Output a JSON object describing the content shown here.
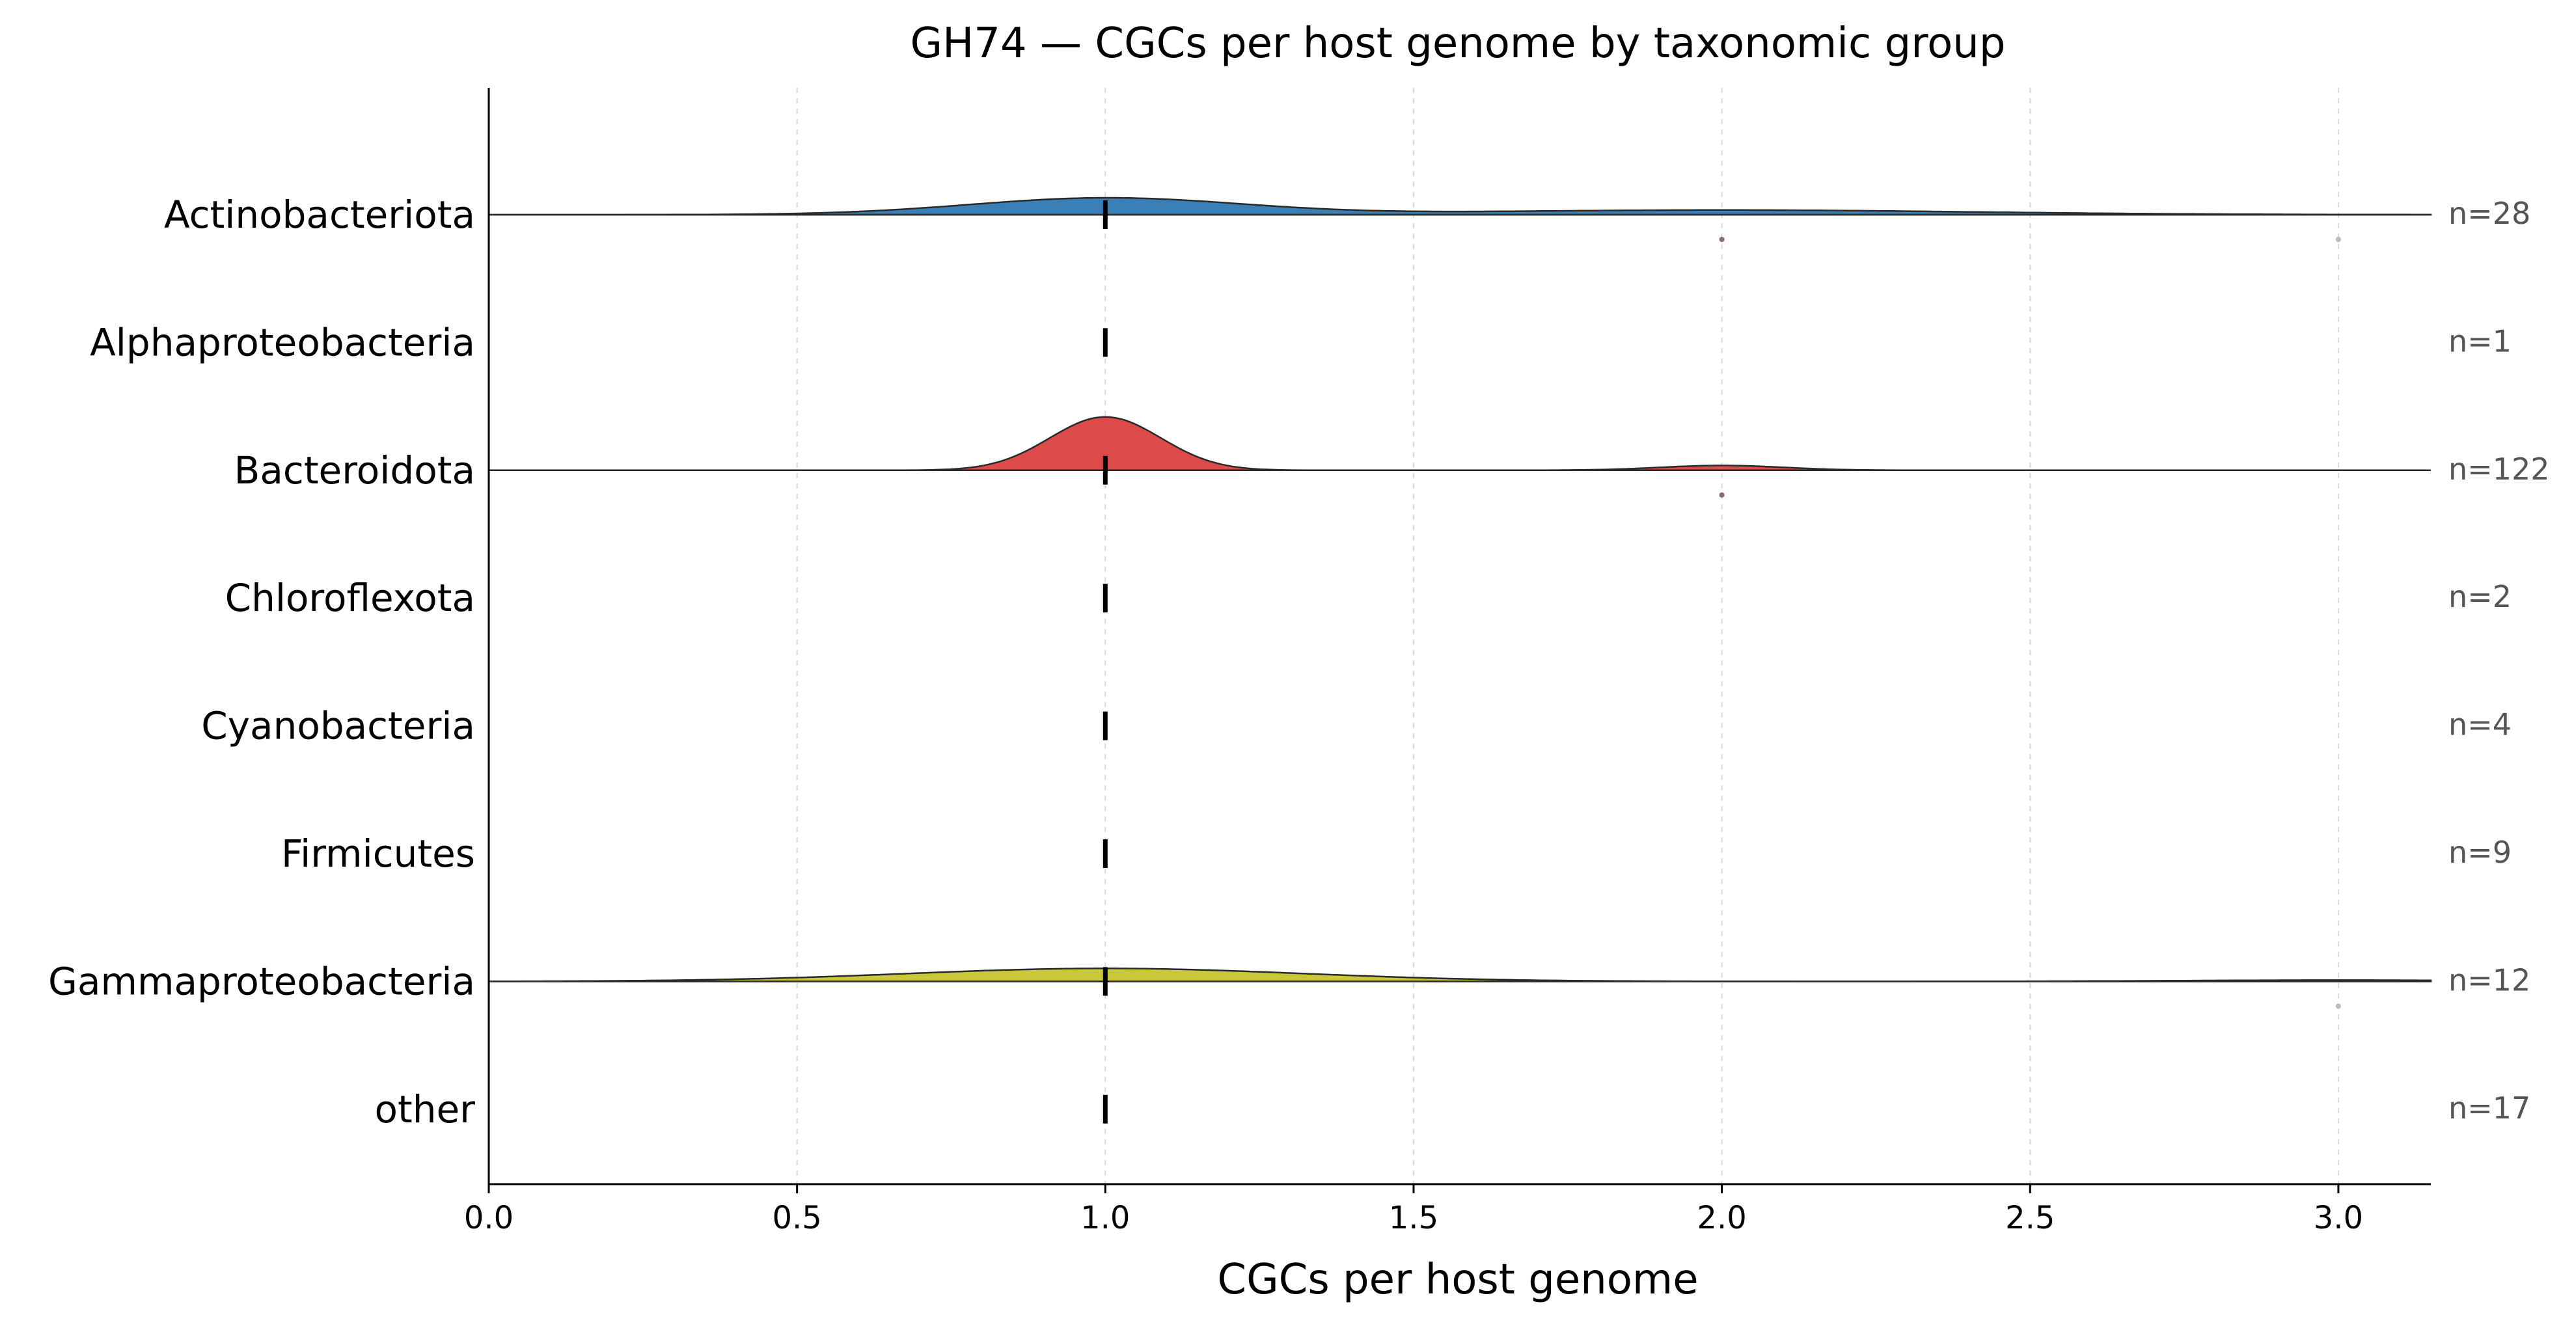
{
  "chart_data": {
    "type": "ridgeline",
    "title": "GH74 — CGCs per host genome by taxonomic group",
    "xlabel": "CGCs per host genome",
    "ylabel": "",
    "xlim": [
      0.0,
      3.15
    ],
    "xticks": [
      0.0,
      0.5,
      1.0,
      1.5,
      2.0,
      2.5,
      3.0
    ],
    "xtick_labels": [
      "0.0",
      "0.5",
      "1.0",
      "1.5",
      "2.0",
      "2.5",
      "3.0"
    ],
    "grid": "vertical dashed",
    "median_marker": "vertical dash",
    "groups": [
      {
        "label": "Actinobacteriota",
        "n_label": "n=28",
        "median": 1.0,
        "color": "#3a80b8",
        "density": [
          {
            "mu": 1.0,
            "sigma": 0.22,
            "weight": 1.0
          },
          {
            "mu": 2.0,
            "sigma": 0.4,
            "weight": 0.28
          }
        ],
        "outliers": [
          {
            "x": 2.0,
            "color": "#8a6a6a"
          },
          {
            "x": 3.0,
            "color": "#bbbbbb"
          }
        ]
      },
      {
        "label": "Alphaproteobacteria",
        "n_label": "n=1",
        "median": 1.0,
        "color": "#e3e3e3",
        "density": [],
        "outliers": []
      },
      {
        "label": "Bacteroidota",
        "n_label": "n=122",
        "median": 1.0,
        "color": "#dd4a4a",
        "density": [
          {
            "mu": 1.0,
            "sigma": 0.09,
            "weight": 1.0
          },
          {
            "mu": 2.0,
            "sigma": 0.1,
            "weight": 0.09
          }
        ],
        "outliers": [
          {
            "x": 2.0,
            "color": "#8a6a6a"
          }
        ]
      },
      {
        "label": "Chloroflexota",
        "n_label": "n=2",
        "median": 1.0,
        "color": "#e3e3e3",
        "density": [],
        "outliers": []
      },
      {
        "label": "Cyanobacteria",
        "n_label": "n=4",
        "median": 1.0,
        "color": "#e3e3e3",
        "density": [],
        "outliers": []
      },
      {
        "label": "Firmicutes",
        "n_label": "n=9",
        "median": 1.0,
        "color": "#e3e3e3",
        "density": [],
        "outliers": []
      },
      {
        "label": "Gammaproteobacteria",
        "n_label": "n=12",
        "median": 1.0,
        "color": "#c9c83a",
        "density": [
          {
            "mu": 1.0,
            "sigma": 0.32,
            "weight": 1.0
          },
          {
            "mu": 3.0,
            "sigma": 0.25,
            "weight": 0.1
          }
        ],
        "outliers": [
          {
            "x": 3.0,
            "color": "#bbbbbb"
          }
        ]
      },
      {
        "label": "other",
        "n_label": "n=17",
        "median": 1.0,
        "color": "#e3e3e3",
        "density": [],
        "outliers": []
      }
    ]
  }
}
